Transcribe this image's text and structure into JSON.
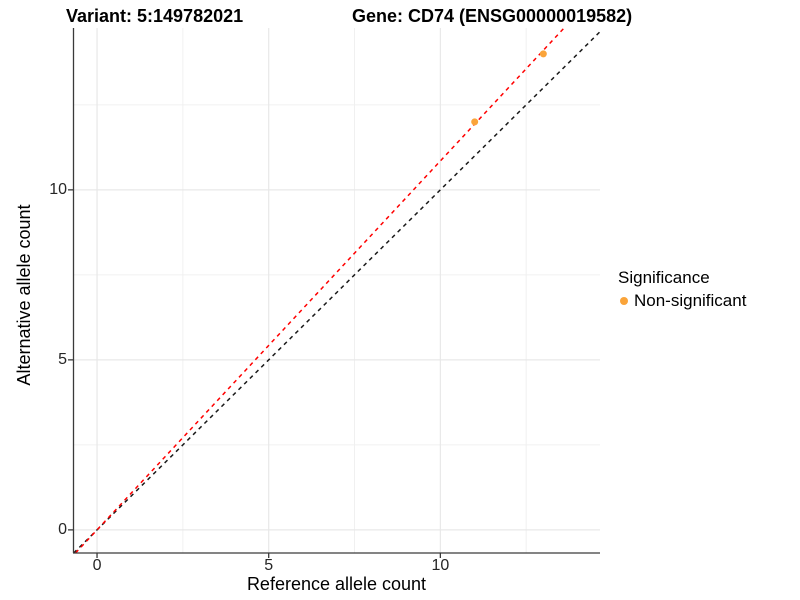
{
  "chart_data": {
    "type": "scatter",
    "title_left": "Variant: 5:149782021",
    "title_right": "Gene: CD74 (ENSG00000019582)",
    "xlabel": "Reference allele count",
    "ylabel": "Alternative allele count",
    "xlim": [
      -0.7,
      14.65
    ],
    "ylim": [
      -0.68,
      14.76
    ],
    "x_ticks": [
      0,
      5,
      10
    ],
    "y_ticks": [
      0,
      5,
      10
    ],
    "x_minor_ticks": [
      2.5,
      7.5,
      12.5
    ],
    "y_minor_ticks": [
      2.5,
      7.5,
      12.5
    ],
    "grid": {
      "major_color": "#E8E8E8",
      "minor_color": "#F0F0F0",
      "background": "#FFFFFF",
      "grid_on": true
    },
    "axis_color": "#3A3A3A",
    "series": [
      {
        "name": "Non-significant",
        "color": "#FAA43A",
        "marker": "circle",
        "points": [
          [
            11,
            12
          ],
          [
            13,
            14
          ]
        ]
      }
    ],
    "lines": [
      {
        "name": "identity-line",
        "color": "#1A1A1A",
        "style": "dashed",
        "slope": 1,
        "intercept": 0
      },
      {
        "name": "fitted-line",
        "color": "#FF0000",
        "style": "dashed",
        "slope": 1.085,
        "intercept": 0
      }
    ],
    "legend": {
      "title": "Significance",
      "position": "right",
      "entries": [
        {
          "label": "Non-significant",
          "color": "#FAA43A"
        }
      ]
    }
  }
}
